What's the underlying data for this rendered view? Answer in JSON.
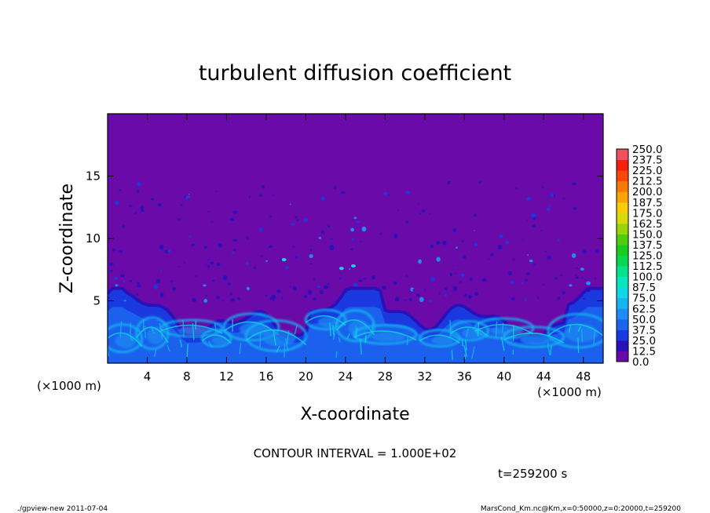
{
  "chart_data": {
    "type": "heatmap",
    "title": "turbulent diffusion coefficient",
    "xlabel": "X-coordinate",
    "ylabel": "Z-coordinate",
    "x_unit": "(×1000 m)",
    "y_unit": "(×1000 m)",
    "xlim": [
      0,
      50
    ],
    "ylim": [
      0,
      20
    ],
    "x_ticks": [
      4,
      8,
      12,
      16,
      20,
      24,
      28,
      32,
      36,
      40,
      44,
      48
    ],
    "y_ticks": [
      5,
      10,
      15
    ],
    "colorbar": {
      "levels": [
        "0.0",
        "12.5",
        "25.0",
        "37.5",
        "50.0",
        "62.5",
        "75.0",
        "87.5",
        "100.0",
        "112.5",
        "125.0",
        "137.5",
        "150.0",
        "162.5",
        "175.0",
        "187.5",
        "200.0",
        "212.5",
        "225.0",
        "237.5",
        "250.0"
      ],
      "colors": [
        "#6a0aa8",
        "#2a10b8",
        "#1a3ae0",
        "#1c66ee",
        "#1e8cf2",
        "#18b4f0",
        "#10d8e6",
        "#08e6c0",
        "#06e28a",
        "#08d850",
        "#18cc20",
        "#50cc10",
        "#9ad40a",
        "#d8d80a",
        "#f8cc08",
        "#f8a408",
        "#f87808",
        "#f84808",
        "#f42010",
        "#f05060"
      ]
    },
    "contour_interval_text": "CONTOUR INTERVAL = 1.000E+02",
    "time_text": "t=259200 s",
    "background_value_range": "0.0-12.5",
    "turbulent_layer_top_km_approx": 5
  },
  "footer": {
    "left": "./gpview-new   2011-07-04",
    "right": "MarsCond_Km.nc@Km,x=0:50000,z=0:20000,t=259200"
  },
  "colors": {
    "background": "#6a0aa8",
    "frame": "#000000"
  }
}
